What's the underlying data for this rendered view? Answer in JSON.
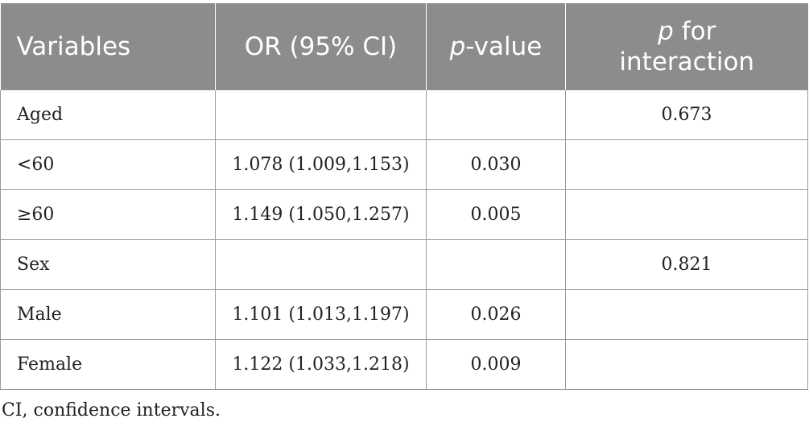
{
  "table": {
    "headers": {
      "variables": "Variables",
      "or": "OR (95% CI)",
      "p_value_italic": "p",
      "p_value_rest": "-value",
      "p_interaction_italic": "p",
      "p_interaction_rest_1": " for",
      "p_interaction_rest_2": "interaction"
    },
    "rows": [
      {
        "variable": "Aged",
        "or": "",
        "p": "",
        "p_int": "0.673"
      },
      {
        "variable": "<60",
        "or": "1.078 (1.009,1.153)",
        "p": "0.030",
        "p_int": ""
      },
      {
        "variable": "≥60",
        "or": "1.149 (1.050,1.257)",
        "p": "0.005",
        "p_int": ""
      },
      {
        "variable": "Sex",
        "or": "",
        "p": "",
        "p_int": "0.821"
      },
      {
        "variable": "Male",
        "or": "1.101 (1.013,1.197)",
        "p": "0.026",
        "p_int": ""
      },
      {
        "variable": "Female",
        "or": "1.122 (1.033,1.218)",
        "p": "0.009",
        "p_int": ""
      }
    ]
  },
  "footnote": "CI, confidence intervals."
}
